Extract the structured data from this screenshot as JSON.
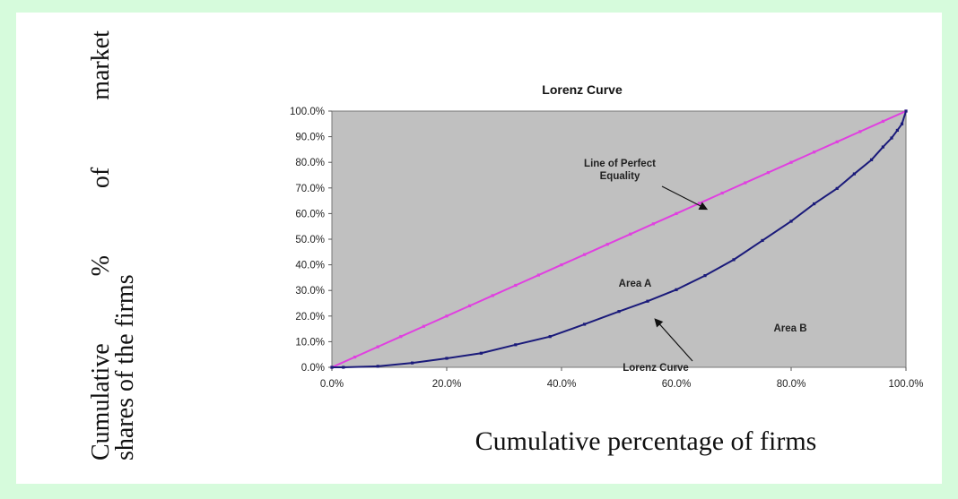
{
  "ylabel": {
    "line1_words": [
      "Cumulative",
      "%",
      "of",
      "market"
    ],
    "line2": "shares of the firms"
  },
  "xlabel": "Cumulative percentage of firms",
  "colors": {
    "page_background": "#d6fbdc",
    "plot_area": "#c0c0c0",
    "equality_line": "#e040e0",
    "lorenz_curve": "#1a1a7a"
  },
  "chart_data": {
    "type": "line",
    "title": "Lorenz Curve",
    "xlim": [
      0,
      100
    ],
    "ylim": [
      0,
      100
    ],
    "x_ticks": [
      "0.0%",
      "20.0%",
      "40.0%",
      "60.0%",
      "80.0%",
      "100.0%"
    ],
    "y_ticks": [
      "0.0%",
      "10.0%",
      "20.0%",
      "30.0%",
      "40.0%",
      "50.0%",
      "60.0%",
      "70.0%",
      "80.0%",
      "90.0%",
      "100.0%"
    ],
    "grid": false,
    "series": [
      {
        "name": "Line of Perfect Equality",
        "color": "#e040e0",
        "x": [
          0,
          4,
          8,
          12,
          16,
          20,
          24,
          28,
          32,
          36,
          40,
          44,
          48,
          52,
          56,
          60,
          64,
          68,
          72,
          76,
          80,
          84,
          88,
          92,
          96,
          100
        ],
        "y": [
          0,
          4,
          8,
          12,
          16,
          20,
          24,
          28,
          32,
          36,
          40,
          44,
          48,
          52,
          56,
          60,
          64,
          68,
          72,
          76,
          80,
          84,
          88,
          92,
          96,
          100
        ]
      },
      {
        "name": "Lorenz Curve",
        "color": "#1a1a7a",
        "x": [
          0,
          2,
          8,
          14,
          20,
          26,
          32,
          38,
          44,
          50,
          55,
          60,
          65,
          70,
          75,
          80,
          84,
          88,
          91,
          94,
          96,
          97.5,
          98.5,
          99.3,
          100
        ],
        "y": [
          0,
          0,
          0.4,
          1.7,
          3.5,
          5.5,
          8.8,
          12,
          16.8,
          21.8,
          25.8,
          30.3,
          35.8,
          42,
          49.5,
          57,
          63.8,
          69.8,
          75.5,
          81,
          86,
          89.5,
          92.5,
          95,
          100
        ]
      }
    ],
    "annotations": [
      {
        "text_lines": [
          "Line of Perfect",
          "Equality"
        ],
        "arrow": true
      },
      {
        "text_lines": [
          "Area A"
        ],
        "arrow": false
      },
      {
        "text_lines": [
          "Area B"
        ],
        "arrow": false
      },
      {
        "text_lines": [
          "Lorenz Curve"
        ],
        "arrow": true
      }
    ]
  }
}
